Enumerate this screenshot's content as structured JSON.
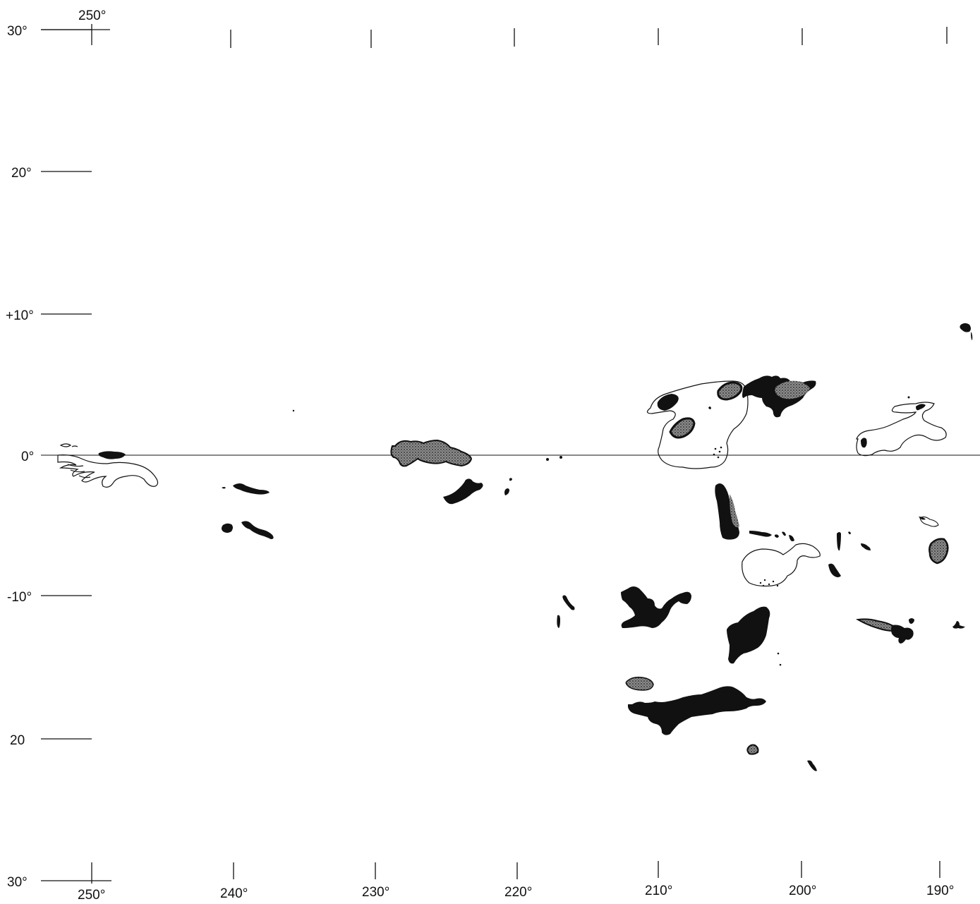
{
  "map": {
    "top_longitude_label": "250°",
    "latitude_labels": [
      "30°",
      "20°",
      "+10°",
      "0°",
      "-10°",
      "20",
      "30°"
    ],
    "bottom_longitude_labels": [
      "250°",
      "240°",
      "230°",
      "220°",
      "210°",
      "200°",
      "190°"
    ],
    "colors": {
      "ink": "#111111",
      "stipple": "#7a7a7a",
      "background": "#ffffff"
    }
  }
}
